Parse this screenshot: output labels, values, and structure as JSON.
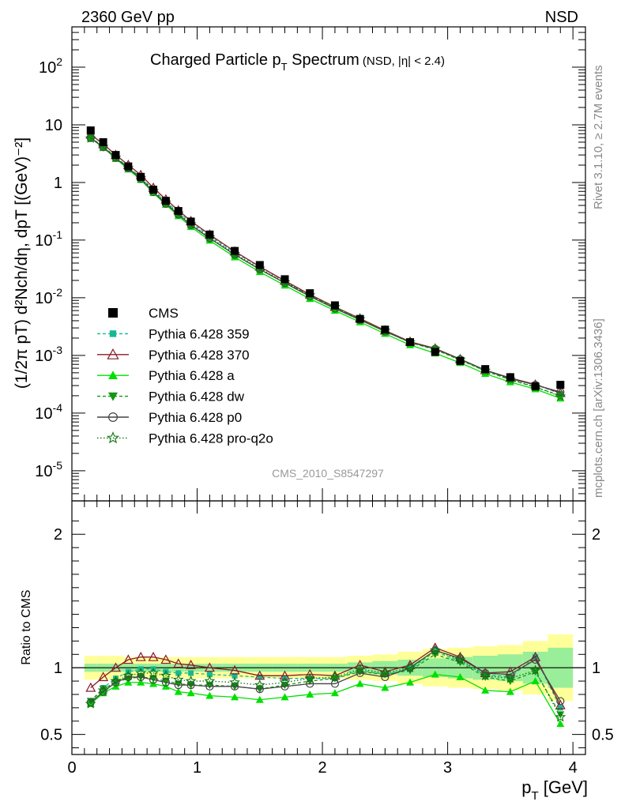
{
  "header": {
    "energy_label": "2360 GeV pp",
    "process_label": "NSD"
  },
  "side_labels": {
    "rivet": "Rivet 3.1.10, ≥ 2.7M events",
    "source": "mcplots.cern.ch [arXiv:1306.3436]"
  },
  "chart_data": {
    "type": "line",
    "title": "Charged Particle pT Spectrum",
    "title_main": "Charged Particle p",
    "title_sub": "T",
    "title_rest": " Spectrum",
    "title_extra": "(NSD, |η| < 2.4)",
    "watermark": "CMS_2010_S8547297",
    "xlabel": "pT [GeV]",
    "xlabel_main": "p",
    "xlabel_sub": "T",
    "xlabel_rest": " [GeV]",
    "ylabel": "(1/2π pT) d²Nch/dη, dpT [(GeV)⁻²]",
    "ratio_ylabel": "Ratio to CMS",
    "log_y": true,
    "xlim": [
      0,
      4.1
    ],
    "ylim": [
      3e-06,
      500
    ],
    "ratio_ylim": [
      0.35,
      2.25
    ],
    "x_ticks": [
      "0",
      "1",
      "2",
      "3",
      "4"
    ],
    "ratio_ticks": [
      "0.5",
      "1",
      "2"
    ],
    "legend_position": "middle-left",
    "x": [
      0.15,
      0.25,
      0.35,
      0.45,
      0.55,
      0.65,
      0.75,
      0.85,
      0.95,
      1.1,
      1.3,
      1.5,
      1.7,
      1.9,
      2.1,
      2.3,
      2.5,
      2.7,
      2.9,
      3.1,
      3.3,
      3.5,
      3.7,
      3.9
    ],
    "data": {
      "name": "CMS",
      "values": [
        8.0,
        5.0,
        3.0,
        1.9,
        1.25,
        0.75,
        0.48,
        0.32,
        0.21,
        0.125,
        0.065,
        0.037,
        0.021,
        0.012,
        0.0074,
        0.0043,
        0.0028,
        0.0017,
        0.00115,
        0.0008,
        0.00058,
        0.00042,
        0.00029,
        0.00031
      ],
      "uncertainty": [
        0.09,
        0.09,
        0.09,
        0.08,
        0.08,
        0.08,
        0.08,
        0.08,
        0.08,
        0.08,
        0.08,
        0.08,
        0.08,
        0.08,
        0.08,
        0.09,
        0.1,
        0.12,
        0.14,
        0.15,
        0.16,
        0.17,
        0.2,
        0.25
      ],
      "stat_uncertainty": [
        0.03,
        0.03,
        0.03,
        0.03,
        0.03,
        0.03,
        0.03,
        0.03,
        0.03,
        0.03,
        0.03,
        0.03,
        0.03,
        0.03,
        0.03,
        0.04,
        0.05,
        0.06,
        0.07,
        0.08,
        0.09,
        0.1,
        0.12,
        0.15
      ]
    },
    "series": [
      {
        "name": "Pythia 6.428 359",
        "color": "#17b891",
        "dash": "4,3",
        "marker": "square",
        "ratio": [
          0.75,
          0.85,
          0.92,
          0.97,
          0.99,
          0.99,
          0.97,
          0.96,
          0.96,
          0.95,
          0.94,
          0.93,
          0.92,
          0.92,
          0.92,
          0.98,
          0.95,
          0.99,
          1.12,
          1.05,
          0.95,
          0.93,
          1.08,
          0.7
        ]
      },
      {
        "name": "Pythia 6.428 370",
        "color": "#8b1a2b",
        "dash": "",
        "marker": "triangle-open",
        "ratio": [
          0.85,
          0.93,
          1.0,
          1.06,
          1.08,
          1.08,
          1.06,
          1.03,
          1.02,
          1.0,
          0.98,
          0.94,
          0.94,
          0.95,
          0.94,
          1.02,
          0.97,
          1.02,
          1.15,
          1.08,
          0.96,
          0.97,
          1.08,
          0.72
        ]
      },
      {
        "name": "Pythia 6.428 a",
        "color": "#00e000",
        "dash": "",
        "marker": "triangle",
        "ratio": [
          0.73,
          0.81,
          0.86,
          0.89,
          0.89,
          0.88,
          0.86,
          0.82,
          0.81,
          0.79,
          0.78,
          0.76,
          0.78,
          0.8,
          0.81,
          0.88,
          0.85,
          0.89,
          0.95,
          0.93,
          0.83,
          0.82,
          0.9,
          0.58
        ]
      },
      {
        "name": "Pythia 6.428 dw",
        "color": "#119911",
        "dash": "4,3",
        "marker": "triangle-down",
        "ratio": [
          0.75,
          0.84,
          0.89,
          0.92,
          0.93,
          0.92,
          0.9,
          0.88,
          0.87,
          0.87,
          0.86,
          0.84,
          0.87,
          0.9,
          0.92,
          0.97,
          0.95,
          0.98,
          1.1,
          1.04,
          0.93,
          0.9,
          0.97,
          0.65
        ]
      },
      {
        "name": "Pythia 6.428 p0",
        "color": "#444444",
        "dash": "",
        "marker": "circle-open",
        "ratio": [
          0.74,
          0.82,
          0.89,
          0.93,
          0.93,
          0.91,
          0.89,
          0.87,
          0.87,
          0.86,
          0.86,
          0.84,
          0.86,
          0.88,
          0.88,
          0.96,
          0.93,
          1.0,
          1.13,
          1.07,
          0.96,
          0.95,
          1.06,
          0.75
        ]
      },
      {
        "name": "Pythia 6.428 pro-q2o",
        "color": "#117711",
        "dash": "1.5,2.5",
        "marker": "star-open",
        "ratio": [
          0.73,
          0.83,
          0.9,
          0.94,
          0.96,
          0.96,
          0.94,
          0.91,
          0.9,
          0.9,
          0.89,
          0.87,
          0.89,
          0.92,
          0.93,
          0.99,
          0.96,
          1.0,
          1.13,
          1.06,
          0.94,
          0.92,
          0.98,
          0.63
        ]
      }
    ]
  }
}
